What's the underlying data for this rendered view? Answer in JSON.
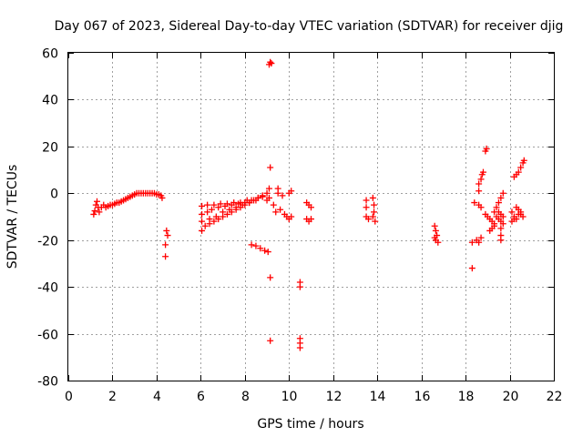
{
  "chart_data": {
    "type": "scatter",
    "title": "Day 067 of 2023, Sidereal Day-to-day VTEC variation (SDTVAR) for receiver djig",
    "xlabel": "GPS time / hours",
    "ylabel": "SDTVAR / TECUs",
    "xlim": [
      0,
      22
    ],
    "ylim": [
      -80,
      60
    ],
    "xticks": [
      "0",
      "2",
      "4",
      "6",
      "8",
      "10",
      "12",
      "14",
      "16",
      "18",
      "20",
      "22"
    ],
    "yticks": [
      "60",
      "40",
      "20",
      "0",
      "-20",
      "-40",
      "-60",
      "-80"
    ],
    "grid": true,
    "marker": "+",
    "series": [
      {
        "name": "SDTVAR",
        "color": "#ff0000",
        "points": [
          [
            1.15,
            -9
          ],
          [
            1.2,
            -7.5
          ],
          [
            1.25,
            -5
          ],
          [
            1.3,
            -3.5
          ],
          [
            1.35,
            -6
          ],
          [
            1.4,
            -8
          ],
          [
            1.5,
            -6
          ],
          [
            1.6,
            -5
          ],
          [
            1.7,
            -6
          ],
          [
            1.8,
            -5.5
          ],
          [
            1.9,
            -5
          ],
          [
            2.0,
            -5
          ],
          [
            2.1,
            -4.5
          ],
          [
            2.2,
            -4
          ],
          [
            2.3,
            -4
          ],
          [
            2.4,
            -3.5
          ],
          [
            2.5,
            -3
          ],
          [
            2.6,
            -2.5
          ],
          [
            2.7,
            -2
          ],
          [
            2.8,
            -1.5
          ],
          [
            2.9,
            -1
          ],
          [
            3.0,
            -0.5
          ],
          [
            3.1,
            0
          ],
          [
            3.2,
            0
          ],
          [
            3.3,
            0
          ],
          [
            3.4,
            0
          ],
          [
            3.5,
            0
          ],
          [
            3.6,
            0
          ],
          [
            3.7,
            0
          ],
          [
            3.8,
            0
          ],
          [
            3.9,
            0
          ],
          [
            4.0,
            -0.5
          ],
          [
            4.1,
            -0.5
          ],
          [
            4.2,
            -1
          ],
          [
            4.25,
            -2
          ],
          [
            4.4,
            -27
          ],
          [
            4.4,
            -22
          ],
          [
            4.45,
            -16
          ],
          [
            4.5,
            -18
          ],
          [
            6.05,
            -5.5
          ],
          [
            6.05,
            -9
          ],
          [
            6.05,
            -12
          ],
          [
            6.05,
            -16
          ],
          [
            6.2,
            -14
          ],
          [
            6.4,
            -13
          ],
          [
            6.6,
            -12
          ],
          [
            6.8,
            -11
          ],
          [
            7.0,
            -10
          ],
          [
            7.2,
            -9
          ],
          [
            7.4,
            -8
          ],
          [
            7.6,
            -7
          ],
          [
            7.8,
            -6
          ],
          [
            8.0,
            -5
          ],
          [
            8.2,
            -4
          ],
          [
            8.4,
            -3
          ],
          [
            8.6,
            -2
          ],
          [
            8.8,
            -1
          ],
          [
            9.0,
            0
          ],
          [
            9.1,
            2
          ],
          [
            6.3,
            -8
          ],
          [
            6.5,
            -7
          ],
          [
            6.8,
            -6
          ],
          [
            7.1,
            -5.5
          ],
          [
            7.4,
            -5
          ],
          [
            7.7,
            -4.5
          ],
          [
            8.0,
            -4
          ],
          [
            8.3,
            -3
          ],
          [
            8.6,
            -2
          ],
          [
            6.3,
            -5
          ],
          [
            6.6,
            -5
          ],
          [
            6.9,
            -4.5
          ],
          [
            7.2,
            -4.5
          ],
          [
            7.5,
            -4
          ],
          [
            7.8,
            -4
          ],
          [
            8.1,
            -3
          ],
          [
            6.4,
            -11
          ],
          [
            6.7,
            -10
          ],
          [
            7.0,
            -8
          ],
          [
            7.3,
            -7
          ],
          [
            7.6,
            -6
          ],
          [
            7.9,
            -5
          ],
          [
            8.2,
            -4
          ],
          [
            8.5,
            -3
          ],
          [
            8.8,
            -1.5
          ],
          [
            8.3,
            -22
          ],
          [
            8.5,
            -22.5
          ],
          [
            8.7,
            -23.5
          ],
          [
            8.9,
            -24.5
          ],
          [
            9.05,
            -25
          ],
          [
            9.0,
            -3
          ],
          [
            9.1,
            -2
          ],
          [
            9.15,
            11
          ],
          [
            9.1,
            55
          ],
          [
            9.15,
            56
          ],
          [
            9.2,
            55.5
          ],
          [
            9.15,
            -36
          ],
          [
            9.15,
            -63
          ],
          [
            9.3,
            -5
          ],
          [
            9.4,
            -8
          ],
          [
            9.5,
            0
          ],
          [
            9.5,
            2
          ],
          [
            9.6,
            -7
          ],
          [
            9.7,
            -1
          ],
          [
            9.8,
            -9
          ],
          [
            9.9,
            -10
          ],
          [
            10.0,
            -11
          ],
          [
            10.1,
            -10
          ],
          [
            10.0,
            0
          ],
          [
            10.1,
            1
          ],
          [
            10.5,
            -38
          ],
          [
            10.5,
            -40
          ],
          [
            10.5,
            -62
          ],
          [
            10.5,
            -64
          ],
          [
            10.5,
            -66
          ],
          [
            10.8,
            -4
          ],
          [
            10.9,
            -5
          ],
          [
            11.0,
            -6
          ],
          [
            10.8,
            -11
          ],
          [
            10.9,
            -12
          ],
          [
            11.0,
            -11
          ],
          [
            13.5,
            -3
          ],
          [
            13.5,
            -6
          ],
          [
            13.5,
            -10
          ],
          [
            13.6,
            -11
          ],
          [
            13.8,
            -2
          ],
          [
            13.85,
            -5
          ],
          [
            13.85,
            -8
          ],
          [
            13.8,
            -10
          ],
          [
            13.9,
            -12
          ],
          [
            16.6,
            -14
          ],
          [
            16.65,
            -16
          ],
          [
            16.7,
            -18
          ],
          [
            16.65,
            -20
          ],
          [
            16.75,
            -21
          ],
          [
            16.6,
            -19
          ],
          [
            18.3,
            -32
          ],
          [
            18.3,
            -21
          ],
          [
            18.4,
            -4
          ],
          [
            18.5,
            -20
          ],
          [
            18.6,
            -21
          ],
          [
            18.7,
            -19
          ],
          [
            18.6,
            -5
          ],
          [
            18.7,
            -6
          ],
          [
            18.6,
            1
          ],
          [
            18.6,
            4
          ],
          [
            18.7,
            6
          ],
          [
            18.75,
            8
          ],
          [
            18.8,
            9
          ],
          [
            18.9,
            18
          ],
          [
            18.95,
            19
          ],
          [
            18.9,
            -9
          ],
          [
            19.0,
            -10
          ],
          [
            19.1,
            -11
          ],
          [
            19.2,
            -12
          ],
          [
            19.3,
            -13
          ],
          [
            19.4,
            -10
          ],
          [
            19.5,
            -11
          ],
          [
            19.6,
            -12
          ],
          [
            19.7,
            -13
          ],
          [
            19.6,
            -15
          ],
          [
            19.6,
            -18
          ],
          [
            19.6,
            -20
          ],
          [
            19.3,
            -8
          ],
          [
            19.4,
            -6
          ],
          [
            19.5,
            -4
          ],
          [
            19.6,
            -2
          ],
          [
            19.7,
            0
          ],
          [
            19.5,
            -8
          ],
          [
            19.6,
            -9
          ],
          [
            19.7,
            -10
          ],
          [
            19.1,
            -16
          ],
          [
            19.2,
            -15
          ],
          [
            19.3,
            -14
          ],
          [
            20.1,
            -8
          ],
          [
            20.2,
            -10
          ],
          [
            20.3,
            -11
          ],
          [
            20.4,
            -9
          ],
          [
            20.5,
            -8
          ],
          [
            20.6,
            -10
          ],
          [
            20.3,
            -6
          ],
          [
            20.4,
            -7
          ],
          [
            20.5,
            -9
          ],
          [
            20.1,
            -12
          ],
          [
            20.2,
            -11
          ],
          [
            20.2,
            7
          ],
          [
            20.3,
            8
          ],
          [
            20.4,
            9
          ],
          [
            20.5,
            11
          ],
          [
            20.6,
            13
          ],
          [
            20.65,
            14
          ]
        ]
      }
    ]
  }
}
